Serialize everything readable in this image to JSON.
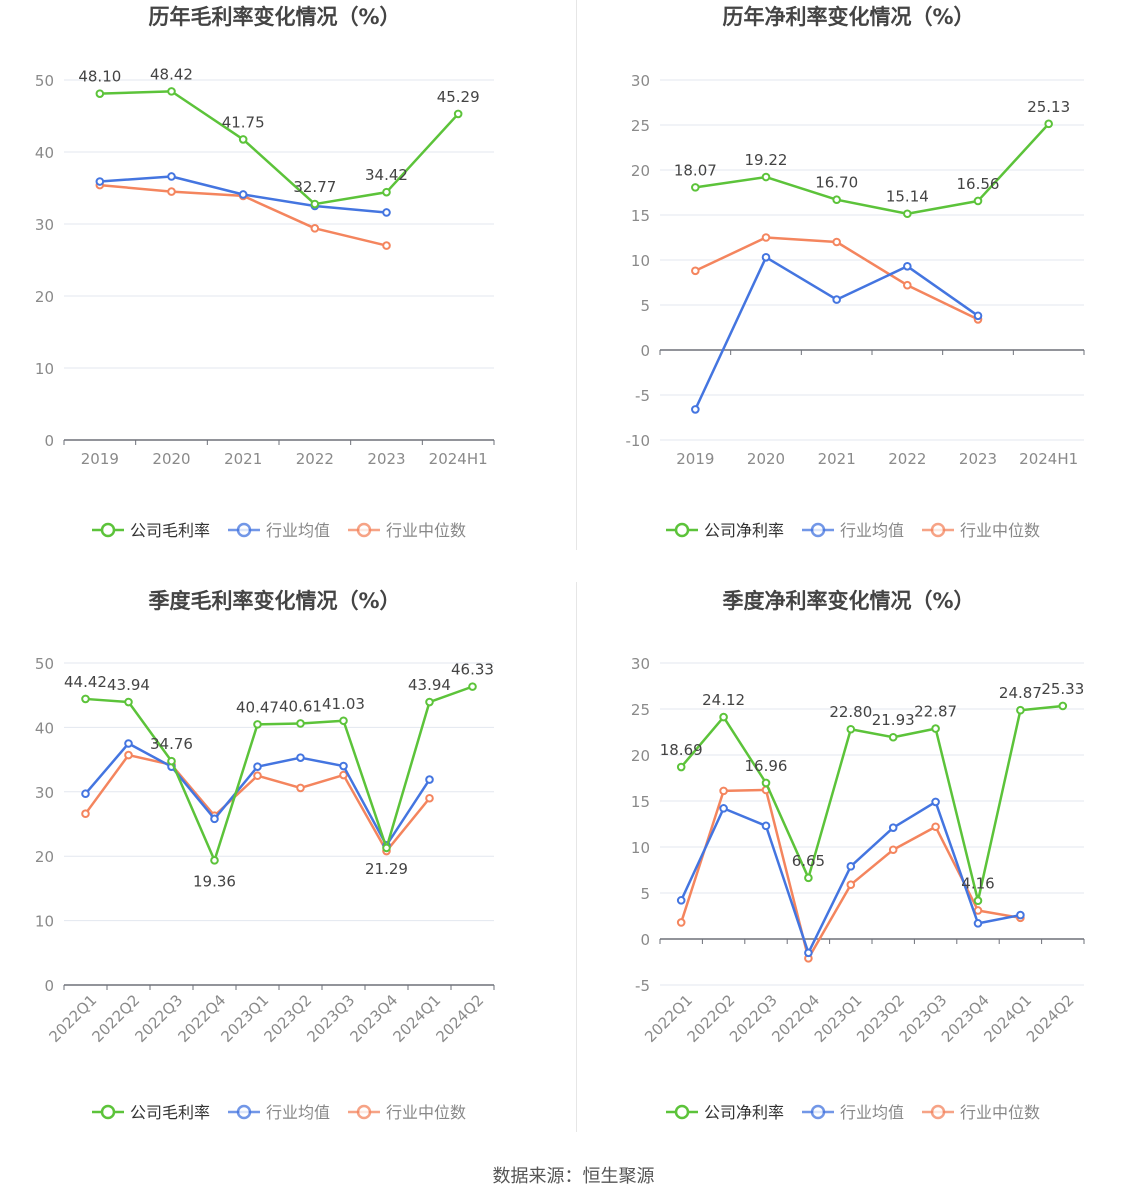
{
  "source_text": "数据来源：恒生聚源",
  "colors": {
    "company": "#5cc33a",
    "avg": "#4475e0",
    "median": "#f4855e",
    "grid": "#e3e7ef",
    "axis": "#6e7079",
    "tick_text": "#8a8a8a",
    "title_text": "#444444",
    "label_text": "#444444"
  },
  "chart_data": [
    {
      "type": "line",
      "title": "历年毛利率变化情况（%）",
      "categories": [
        "2019",
        "2020",
        "2021",
        "2022",
        "2023",
        "2024H1"
      ],
      "ylim": [
        0,
        50
      ],
      "yticks": [
        0,
        10,
        20,
        30,
        40,
        50
      ],
      "x_rotated": false,
      "series": [
        {
          "name": "公司毛利率",
          "role": "company",
          "values": [
            48.1,
            48.42,
            41.75,
            32.77,
            34.42,
            45.29
          ],
          "labels": [
            "48.10",
            "48.42",
            "41.75",
            "32.77",
            "34.42",
            "45.29"
          ]
        },
        {
          "name": "行业均值",
          "role": "avg",
          "values": [
            35.9,
            36.6,
            34.1,
            32.5,
            31.6,
            null
          ]
        },
        {
          "name": "行业中位数",
          "role": "median",
          "values": [
            35.4,
            34.5,
            33.9,
            29.4,
            27.0,
            null
          ]
        }
      ],
      "legend_position": "bottom"
    },
    {
      "type": "line",
      "title": "历年净利率变化情况（%）",
      "categories": [
        "2019",
        "2020",
        "2021",
        "2022",
        "2023",
        "2024H1"
      ],
      "ylim": [
        -10,
        30
      ],
      "yticks": [
        -10,
        -5,
        0,
        5,
        10,
        15,
        20,
        25,
        30
      ],
      "x_rotated": false,
      "series": [
        {
          "name": "公司净利率",
          "role": "company",
          "values": [
            18.07,
            19.22,
            16.7,
            15.14,
            16.56,
            25.13
          ],
          "labels": [
            "18.07",
            "19.22",
            "16.70",
            "15.14",
            "16.56",
            "25.13"
          ]
        },
        {
          "name": "行业均值",
          "role": "avg",
          "values": [
            -6.6,
            10.3,
            5.6,
            9.3,
            3.8,
            null
          ]
        },
        {
          "name": "行业中位数",
          "role": "median",
          "values": [
            8.8,
            12.5,
            12.0,
            7.2,
            3.4,
            null
          ]
        }
      ],
      "legend_position": "bottom"
    },
    {
      "type": "line",
      "title": "季度毛利率变化情况（%）",
      "categories": [
        "2022Q1",
        "2022Q2",
        "2022Q3",
        "2022Q4",
        "2023Q1",
        "2023Q2",
        "2023Q3",
        "2023Q4",
        "2024Q1",
        "2024Q2"
      ],
      "ylim": [
        0,
        50
      ],
      "yticks": [
        0,
        10,
        20,
        30,
        40,
        50
      ],
      "x_rotated": true,
      "series": [
        {
          "name": "公司毛利率",
          "role": "company",
          "values": [
            44.42,
            43.94,
            34.76,
            19.36,
            40.47,
            40.61,
            41.03,
            21.29,
            43.94,
            46.33
          ],
          "labels": [
            "44.42",
            "43.94",
            "34.76",
            "19.36",
            "40.47",
            "40.61",
            "41.03",
            "21.29",
            "43.94",
            "46.33"
          ]
        },
        {
          "name": "行业均值",
          "role": "avg",
          "values": [
            29.7,
            37.5,
            33.9,
            25.8,
            33.9,
            35.3,
            34.0,
            21.7,
            31.9,
            null
          ]
        },
        {
          "name": "行业中位数",
          "role": "median",
          "values": [
            26.6,
            35.7,
            34.2,
            26.3,
            32.5,
            30.6,
            32.6,
            20.8,
            29.0,
            null
          ]
        }
      ],
      "legend_position": "bottom"
    },
    {
      "type": "line",
      "title": "季度净利率变化情况（%）",
      "categories": [
        "2022Q1",
        "2022Q2",
        "2022Q3",
        "2022Q4",
        "2023Q1",
        "2023Q2",
        "2023Q3",
        "2023Q4",
        "2024Q1",
        "2024Q2"
      ],
      "ylim": [
        -5,
        30
      ],
      "yticks": [
        -5,
        0,
        5,
        10,
        15,
        20,
        25,
        30
      ],
      "x_rotated": true,
      "series": [
        {
          "name": "公司净利率",
          "role": "company",
          "values": [
            18.69,
            24.12,
            16.96,
            6.65,
            22.8,
            21.93,
            22.87,
            4.16,
            24.87,
            25.33
          ],
          "labels": [
            "18.69",
            "24.12",
            "16.96",
            "6.65",
            "22.80",
            "21.93",
            "22.87",
            "4.16",
            "24.87",
            "25.33"
          ]
        },
        {
          "name": "行业均值",
          "role": "avg",
          "values": [
            4.2,
            14.2,
            12.3,
            -1.5,
            7.9,
            12.1,
            14.9,
            1.7,
            2.6,
            null
          ]
        },
        {
          "name": "行业中位数",
          "role": "median",
          "values": [
            1.8,
            16.1,
            16.2,
            -2.1,
            5.9,
            9.7,
            12.2,
            3.1,
            2.3,
            null
          ]
        }
      ],
      "legend_position": "bottom"
    }
  ]
}
